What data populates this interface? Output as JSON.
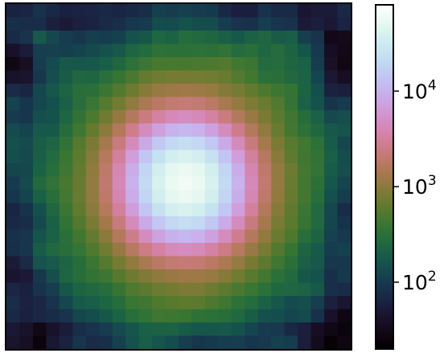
{
  "chart_data": {
    "type": "heatmap",
    "title": "",
    "xlabel": "",
    "ylabel": "",
    "colormap": "cubehelix",
    "color_scale": "log",
    "color_range": [
      20,
      80000
    ],
    "grid": false,
    "n_rows": 26,
    "n_cols": 26,
    "colorbar": {
      "position": "right",
      "ticks": [
        {
          "value": 100,
          "base": "10",
          "exp": "2"
        },
        {
          "value": 1000,
          "base": "10",
          "exp": "3"
        },
        {
          "value": 10000,
          "base": "10",
          "exp": "4"
        }
      ]
    },
    "peak": {
      "row": 13,
      "col": 13,
      "value": 60000
    },
    "background_value": 100
  }
}
